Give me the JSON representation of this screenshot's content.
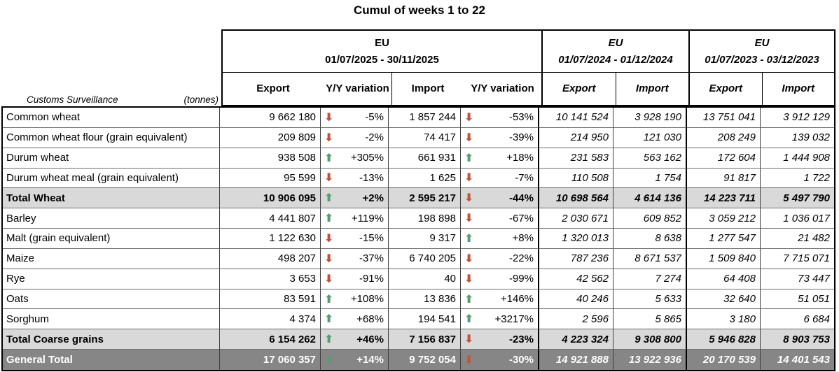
{
  "title": "Cumul of weeks 1 to 22",
  "corner": {
    "label": "Customs Surveillance",
    "unit": "(tonnes)"
  },
  "colors": {
    "arrow_up": "#579d74",
    "arrow_down": "#c4513c",
    "subtotal_bg": "#d9d9d9",
    "total_bg": "#868686",
    "border": "#000000"
  },
  "table": {
    "groups": [
      {
        "region": "EU",
        "period": "01/07/2025 - 30/11/2025",
        "columns": [
          "Export",
          "Y/Y variation",
          "Import",
          "Y/Y variation"
        ]
      },
      {
        "region": "EU",
        "period": "01/07/2024 - 01/12/2024",
        "columns": [
          "Export",
          "Import"
        ]
      },
      {
        "region": "EU",
        "period": "01/07/2023 - 03/12/2023",
        "columns": [
          "Export",
          "Import"
        ]
      }
    ],
    "rows": [
      {
        "label": "Common wheat",
        "style": "normal",
        "export": "9 662 180",
        "export_dir": "down",
        "export_var": "-5%",
        "import": "1 857 244",
        "import_dir": "down",
        "import_var": "-53%",
        "export_2024": "10 141 524",
        "import_2024": "3 928 190",
        "export_2023": "13 751 041",
        "import_2023": "3 912 129"
      },
      {
        "label": "Common wheat flour (grain equivalent)",
        "style": "normal",
        "export": "209 809",
        "export_dir": "down",
        "export_var": "-2%",
        "import": "74 417",
        "import_dir": "down",
        "import_var": "-39%",
        "export_2024": "214 950",
        "import_2024": "121 030",
        "export_2023": "208 249",
        "import_2023": "139 032"
      },
      {
        "label": "Durum wheat",
        "style": "normal",
        "export": "938 508",
        "export_dir": "up",
        "export_var": "+305%",
        "import": "661 931",
        "import_dir": "up",
        "import_var": "+18%",
        "export_2024": "231 583",
        "import_2024": "563 162",
        "export_2023": "172 604",
        "import_2023": "1 444 908"
      },
      {
        "label": "Durum wheat meal (grain equivalent)",
        "style": "normal",
        "export": "95 599",
        "export_dir": "down",
        "export_var": "-13%",
        "import": "1 625",
        "import_dir": "down",
        "import_var": "-7%",
        "export_2024": "110 508",
        "import_2024": "1 754",
        "export_2023": "91 817",
        "import_2023": "1 722"
      },
      {
        "label": "Total Wheat",
        "style": "subtotal",
        "export": "10 906 095",
        "export_dir": "up",
        "export_var": "+2%",
        "import": "2 595 217",
        "import_dir": "down",
        "import_var": "-44%",
        "export_2024": "10 698 564",
        "import_2024": "4 614 136",
        "export_2023": "14 223 711",
        "import_2023": "5 497 790"
      },
      {
        "label": "Barley",
        "style": "normal",
        "export": "4 441 807",
        "export_dir": "up",
        "export_var": "+119%",
        "import": "198 898",
        "import_dir": "down",
        "import_var": "-67%",
        "export_2024": "2 030 671",
        "import_2024": "609 852",
        "export_2023": "3 059 212",
        "import_2023": "1 036 017"
      },
      {
        "label": "Malt (grain equivalent)",
        "style": "normal",
        "export": "1 122 630",
        "export_dir": "down",
        "export_var": "-15%",
        "import": "9 317",
        "import_dir": "up",
        "import_var": "+8%",
        "export_2024": "1 320 013",
        "import_2024": "8 638",
        "export_2023": "1 277 547",
        "import_2023": "21 482"
      },
      {
        "label": "Maize",
        "style": "normal",
        "export": "498 207",
        "export_dir": "down",
        "export_var": "-37%",
        "import": "6 740 205",
        "import_dir": "down",
        "import_var": "-22%",
        "export_2024": "787 236",
        "import_2024": "8 671 537",
        "export_2023": "1 509 840",
        "import_2023": "7 715 071"
      },
      {
        "label": "Rye",
        "style": "normal",
        "export": "3 653",
        "export_dir": "down",
        "export_var": "-91%",
        "import": "40",
        "import_dir": "down",
        "import_var": "-99%",
        "export_2024": "42 562",
        "import_2024": "7 274",
        "export_2023": "64 408",
        "import_2023": "73 447"
      },
      {
        "label": "Oats",
        "style": "normal",
        "export": "83 591",
        "export_dir": "up",
        "export_var": "+108%",
        "import": "13 836",
        "import_dir": "up",
        "import_var": "+146%",
        "export_2024": "40 246",
        "import_2024": "5 633",
        "export_2023": "32 640",
        "import_2023": "51 051"
      },
      {
        "label": "Sorghum",
        "style": "normal",
        "export": "4 374",
        "export_dir": "up",
        "export_var": "+68%",
        "import": "194 541",
        "import_dir": "up",
        "import_var": "+3217%",
        "export_2024": "2 596",
        "import_2024": "5 865",
        "export_2023": "3 180",
        "import_2023": "6 684"
      },
      {
        "label": "Total Coarse grains",
        "style": "subtotal",
        "export": "6 154 262",
        "export_dir": "up",
        "export_var": "+46%",
        "import": "7 156 837",
        "import_dir": "down",
        "import_var": "-23%",
        "export_2024": "4 223 324",
        "import_2024": "9 308 800",
        "export_2023": "5 946 828",
        "import_2023": "8 903 753"
      },
      {
        "label": "General Total",
        "style": "total",
        "export": "17 060 357",
        "export_dir": "up",
        "export_var": "+14%",
        "import": "9 752 054",
        "import_dir": "down",
        "import_var": "-30%",
        "export_2024": "14 921 888",
        "import_2024": "13 922 936",
        "export_2023": "20 170 539",
        "import_2023": "14 401 543"
      }
    ]
  }
}
